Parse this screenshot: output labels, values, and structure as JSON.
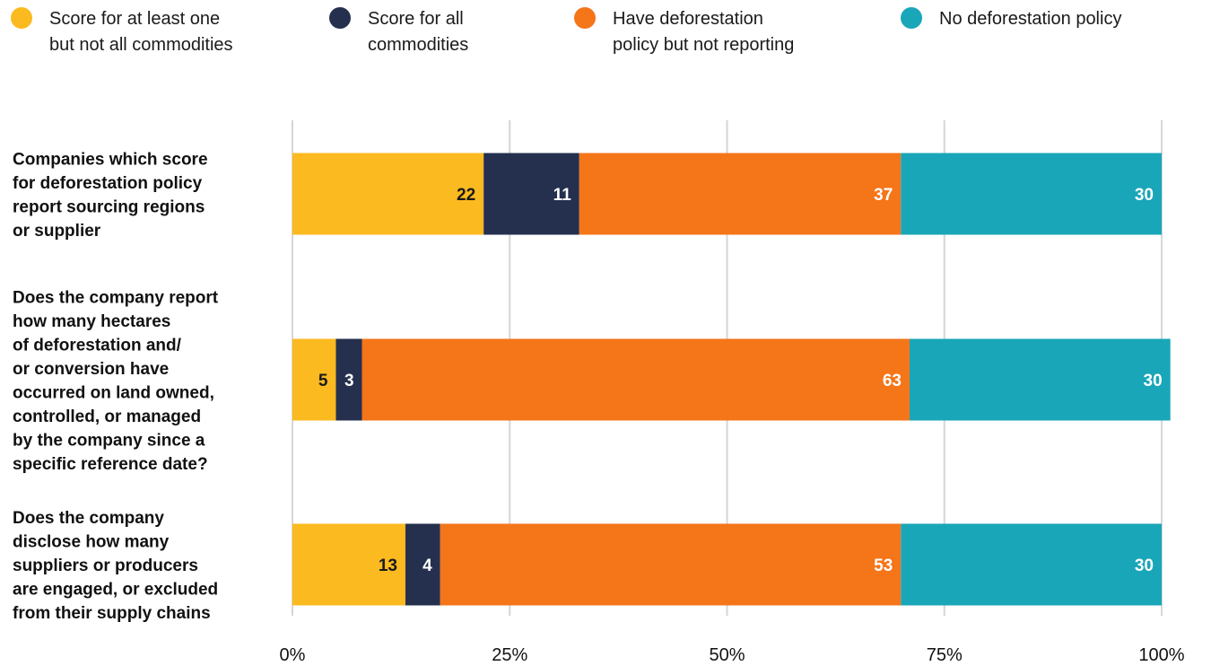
{
  "chart_data": {
    "type": "bar",
    "orientation": "horizontal",
    "stacked": true,
    "xlim": [
      0,
      100
    ],
    "x_ticks": [
      "0%",
      "25%",
      "50%",
      "75%",
      "100%"
    ],
    "x_tick_values": [
      0,
      25,
      50,
      75,
      100
    ],
    "grid": true,
    "legend_placement": "top",
    "categories": [
      [
        "Companies which score",
        "for deforestation policy",
        "report sourcing regions",
        "or supplier"
      ],
      [
        "Does the company report",
        "how many hectares",
        "of deforestation and/",
        "or conversion have",
        "occurred on land owned,",
        "controlled, or managed",
        "by the company since a",
        "specific reference date?"
      ],
      [
        "Does the company",
        "disclose how many",
        "suppliers or producers",
        "are engaged, or excluded",
        "from their supply chains"
      ]
    ],
    "series": [
      {
        "name": [
          "Score for at least one",
          "but not all commodities"
        ],
        "color": "#FBBA1F",
        "label_color": "#1a1a1a",
        "values": [
          22,
          5,
          13
        ]
      },
      {
        "name": [
          "Score for all",
          "commodities"
        ],
        "color": "#25304F",
        "label_color": "#ffffff",
        "values": [
          11,
          3,
          4
        ]
      },
      {
        "name": [
          "Have deforestation",
          "policy but not reporting"
        ],
        "color": "#F57519",
        "label_color": "#ffffff",
        "values": [
          37,
          63,
          53
        ]
      },
      {
        "name": [
          "No deforestation policy"
        ],
        "color": "#19A6B8",
        "label_color": "#ffffff",
        "values": [
          30,
          30,
          30
        ]
      }
    ]
  }
}
